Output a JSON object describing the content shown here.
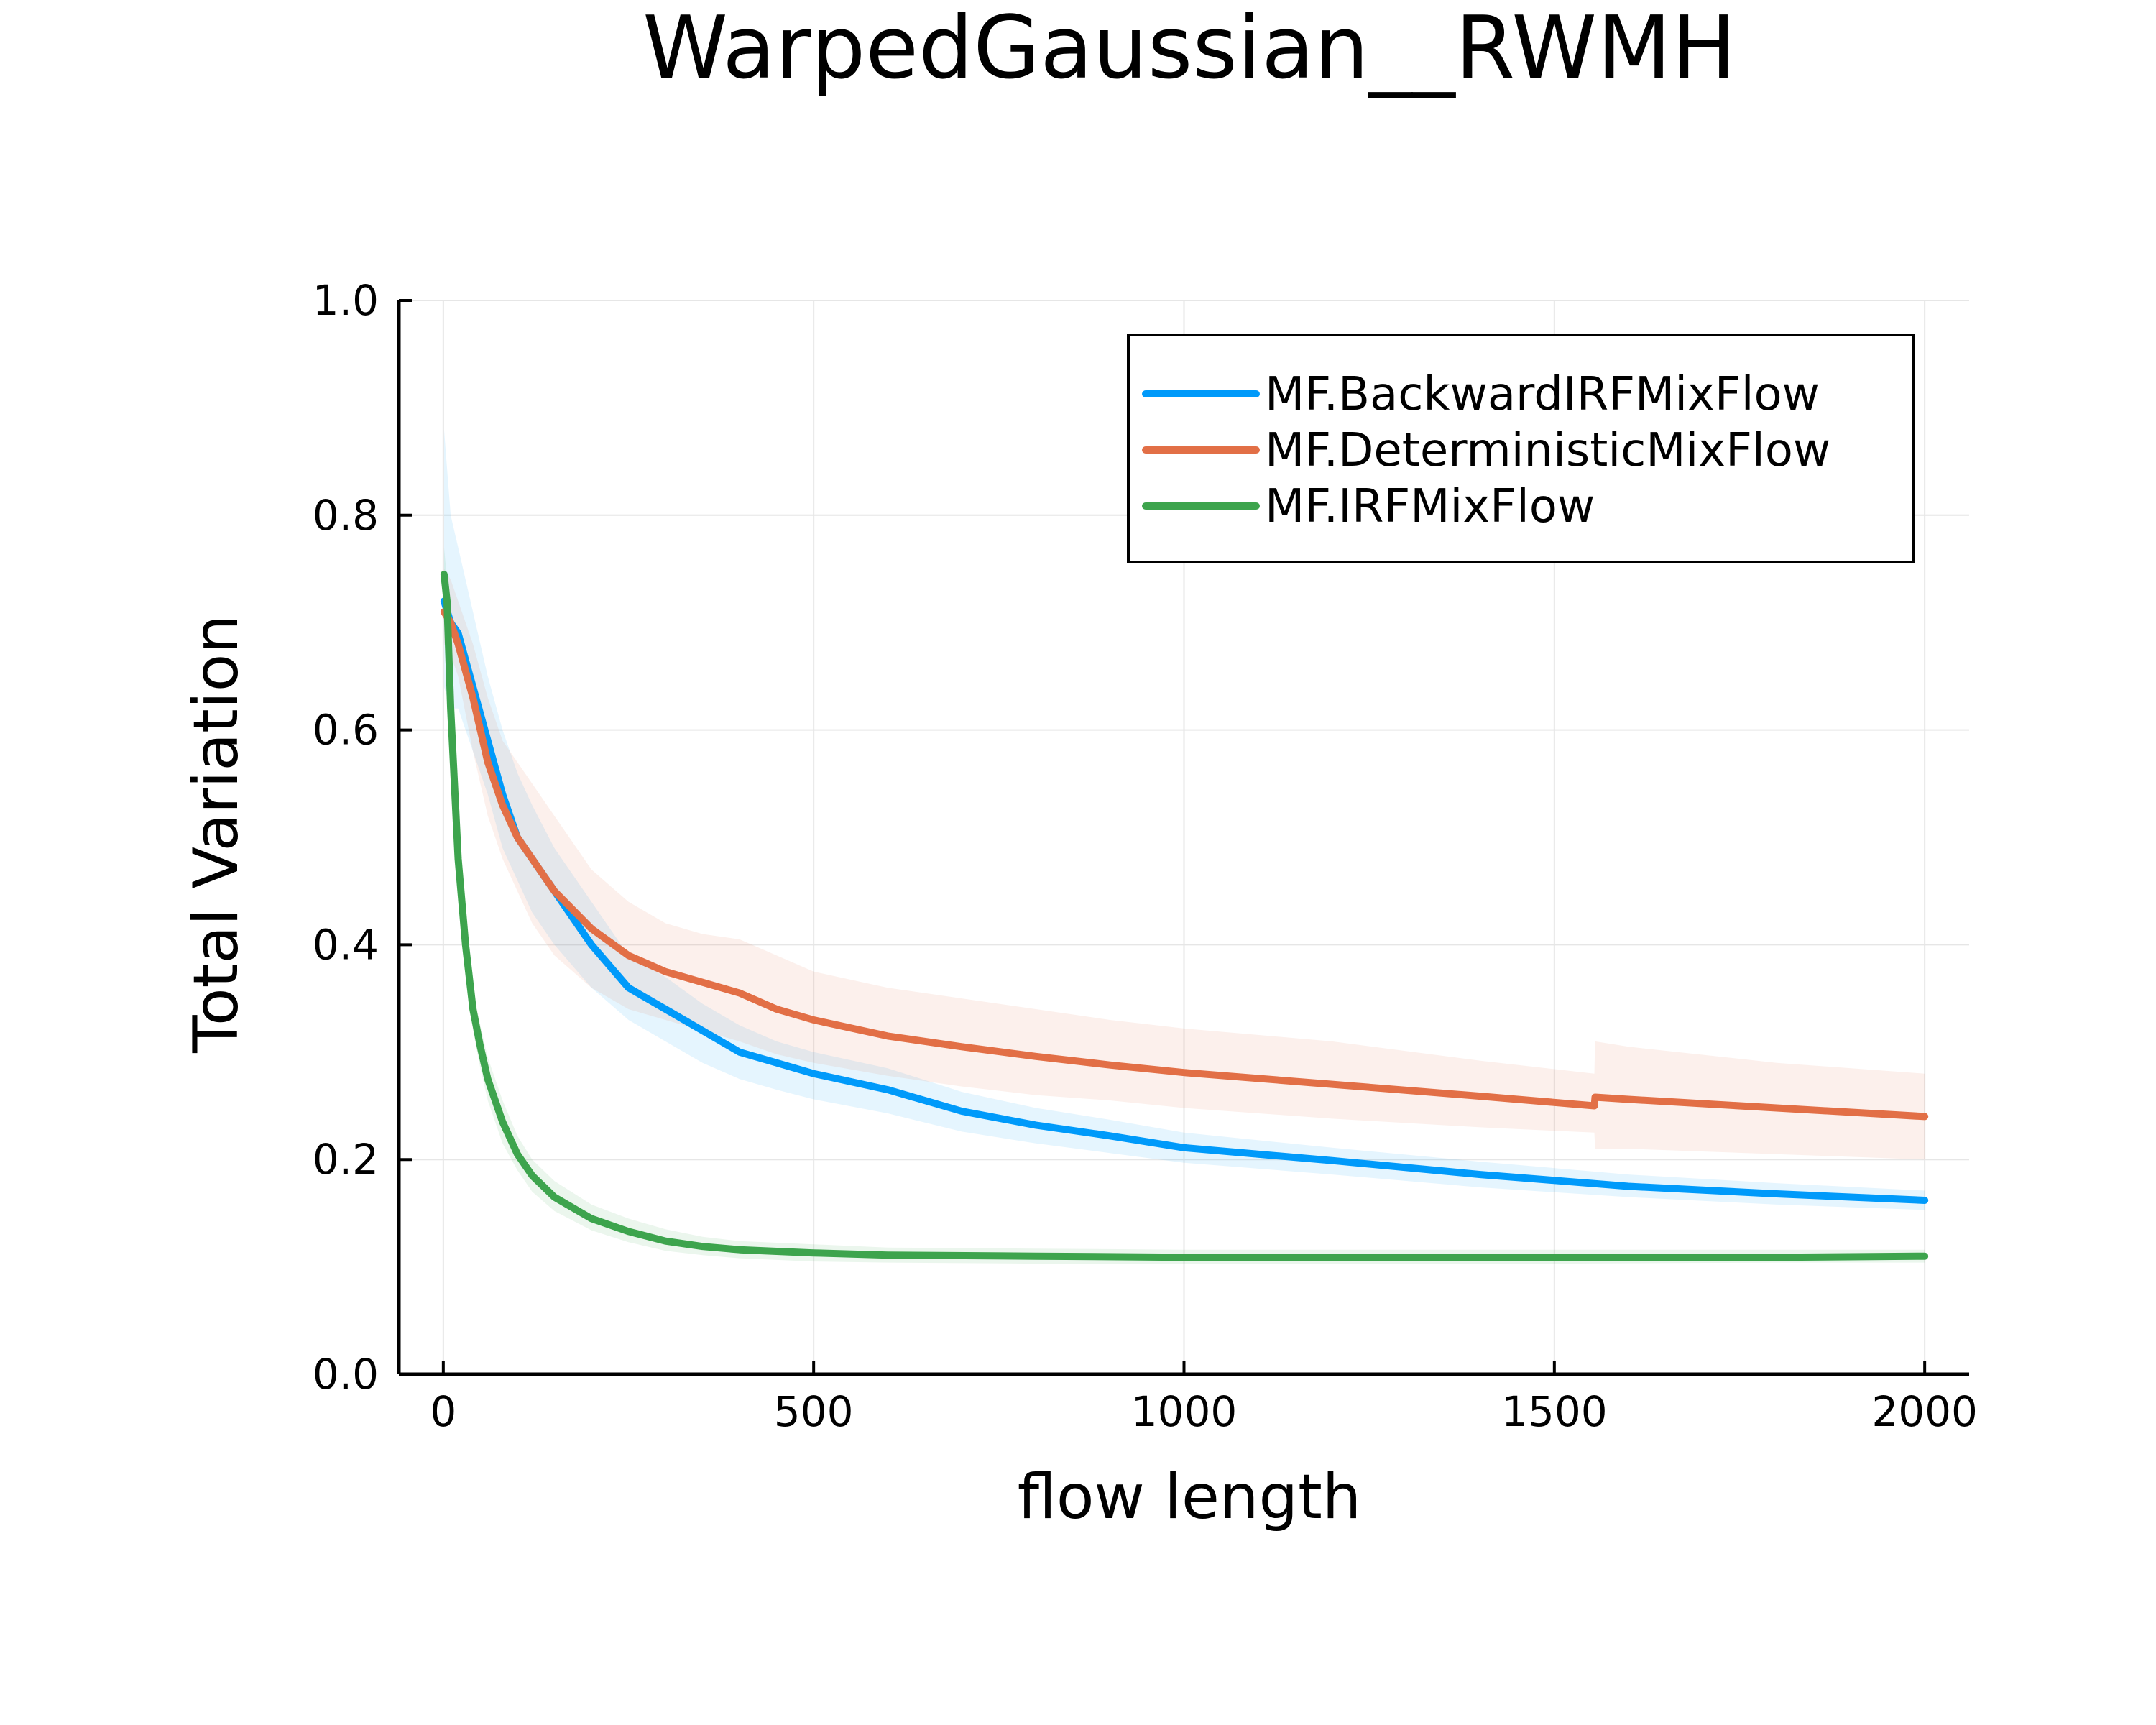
{
  "chart_data": {
    "type": "line",
    "title": "WarpedGaussian__RWMH",
    "xlabel": "flow length",
    "ylabel": "Total Variation",
    "xlim": [
      -60,
      2060
    ],
    "ylim": [
      0,
      1.0
    ],
    "xticks": [
      0,
      500,
      1000,
      1500,
      2000
    ],
    "yticks": [
      0.0,
      0.2,
      0.4,
      0.6,
      0.8,
      1.0
    ],
    "xtick_labels": [
      "0",
      "500",
      "1000",
      "1500",
      "2000"
    ],
    "ytick_labels": [
      "0.0",
      "0.2",
      "0.4",
      "0.6",
      "0.8",
      "1.0"
    ],
    "grid": true,
    "legend_position": "top-right",
    "series": [
      {
        "name": "MF.BackwardIRFMixFlow",
        "color": "#009AFA",
        "band_color": "#009AFA",
        "x": [
          1,
          10,
          20,
          40,
          60,
          80,
          100,
          120,
          150,
          200,
          250,
          300,
          350,
          400,
          450,
          500,
          600,
          700,
          800,
          900,
          1000,
          1200,
          1400,
          1600,
          1800,
          2000
        ],
        "y": [
          0.72,
          0.7,
          0.69,
          0.64,
          0.59,
          0.54,
          0.5,
          0.48,
          0.45,
          0.4,
          0.36,
          0.34,
          0.32,
          0.3,
          0.29,
          0.28,
          0.265,
          0.245,
          0.232,
          0.222,
          0.211,
          0.199,
          0.186,
          0.175,
          0.168,
          0.162
        ],
        "lower": [
          0.64,
          0.62,
          0.62,
          0.58,
          0.54,
          0.49,
          0.46,
          0.43,
          0.4,
          0.36,
          0.33,
          0.31,
          0.29,
          0.275,
          0.265,
          0.256,
          0.243,
          0.226,
          0.215,
          0.206,
          0.197,
          0.186,
          0.174,
          0.165,
          0.158,
          0.153
        ],
        "upper": [
          0.88,
          0.8,
          0.77,
          0.71,
          0.65,
          0.6,
          0.56,
          0.53,
          0.49,
          0.44,
          0.39,
          0.37,
          0.345,
          0.325,
          0.31,
          0.3,
          0.285,
          0.263,
          0.248,
          0.237,
          0.225,
          0.211,
          0.198,
          0.186,
          0.178,
          0.171
        ]
      },
      {
        "name": "MF.DeterministicMixFlow",
        "color": "#E26F46",
        "band_color": "#E26F46",
        "x": [
          1,
          10,
          20,
          40,
          60,
          80,
          100,
          120,
          150,
          200,
          250,
          300,
          350,
          400,
          450,
          500,
          600,
          700,
          800,
          900,
          1000,
          1200,
          1400,
          1554,
          1555,
          1600,
          1800,
          2000
        ],
        "y": [
          0.71,
          0.7,
          0.68,
          0.63,
          0.57,
          0.53,
          0.5,
          0.48,
          0.45,
          0.415,
          0.39,
          0.375,
          0.365,
          0.355,
          0.34,
          0.33,
          0.315,
          0.305,
          0.296,
          0.288,
          0.281,
          0.27,
          0.259,
          0.25,
          0.258,
          0.256,
          0.248,
          0.24
        ],
        "lower": [
          0.68,
          0.67,
          0.65,
          0.58,
          0.52,
          0.48,
          0.45,
          0.42,
          0.39,
          0.36,
          0.34,
          0.33,
          0.32,
          0.31,
          0.298,
          0.29,
          0.278,
          0.268,
          0.26,
          0.255,
          0.248,
          0.238,
          0.23,
          0.225,
          0.21,
          0.21,
          0.205,
          0.2
        ],
        "upper": [
          0.75,
          0.74,
          0.72,
          0.68,
          0.63,
          0.59,
          0.57,
          0.55,
          0.52,
          0.47,
          0.44,
          0.42,
          0.41,
          0.405,
          0.39,
          0.375,
          0.36,
          0.35,
          0.34,
          0.33,
          0.322,
          0.31,
          0.292,
          0.28,
          0.31,
          0.305,
          0.29,
          0.28
        ]
      },
      {
        "name": "MF.IRFMixFlow",
        "color": "#3DA44D",
        "band_color": "#3DA44D",
        "x": [
          1,
          5,
          10,
          15,
          20,
          30,
          40,
          50,
          60,
          80,
          100,
          120,
          150,
          200,
          250,
          300,
          350,
          400,
          500,
          600,
          800,
          1000,
          1200,
          1500,
          1800,
          2000
        ],
        "y": [
          0.745,
          0.72,
          0.62,
          0.55,
          0.48,
          0.4,
          0.34,
          0.305,
          0.275,
          0.235,
          0.205,
          0.185,
          0.165,
          0.145,
          0.133,
          0.124,
          0.119,
          0.116,
          0.113,
          0.111,
          0.11,
          0.109,
          0.109,
          0.109,
          0.109,
          0.11
        ],
        "lower": [
          0.72,
          0.7,
          0.6,
          0.53,
          0.46,
          0.38,
          0.32,
          0.285,
          0.255,
          0.215,
          0.19,
          0.17,
          0.152,
          0.134,
          0.123,
          0.115,
          0.111,
          0.108,
          0.105,
          0.104,
          0.103,
          0.103,
          0.103,
          0.103,
          0.104,
          0.104
        ],
        "upper": [
          0.77,
          0.74,
          0.64,
          0.57,
          0.5,
          0.42,
          0.36,
          0.325,
          0.295,
          0.255,
          0.222,
          0.2,
          0.18,
          0.158,
          0.145,
          0.135,
          0.128,
          0.124,
          0.121,
          0.118,
          0.117,
          0.116,
          0.116,
          0.116,
          0.116,
          0.116
        ]
      }
    ]
  }
}
